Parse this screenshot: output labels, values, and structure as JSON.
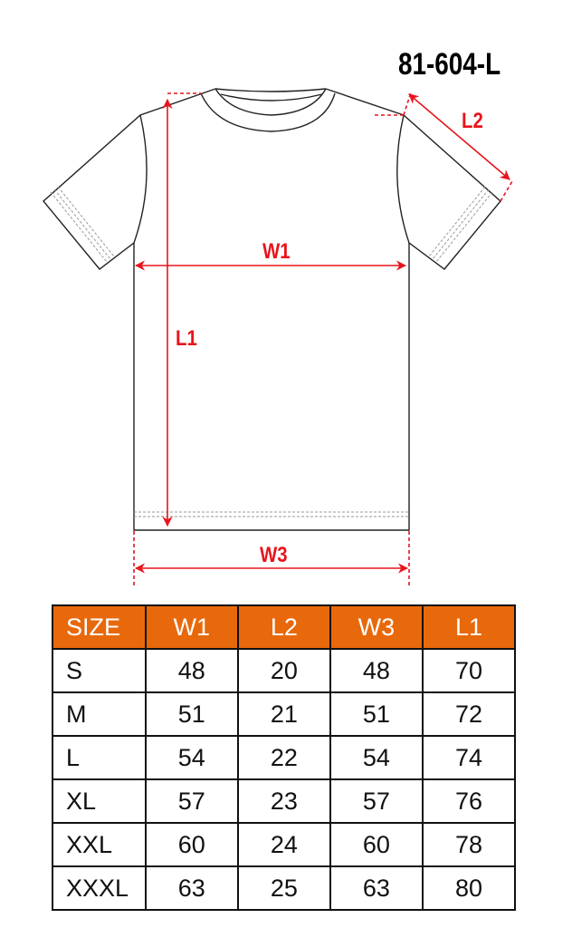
{
  "product_code": "81-604-L",
  "measure_labels": {
    "w1": "W1",
    "l1": "L1",
    "l2": "L2",
    "w3": "W3"
  },
  "colors": {
    "accent": "#e8690b",
    "measure_line": "#e8141c"
  },
  "table": {
    "headers": [
      "SIZE",
      "W1",
      "L2",
      "W3",
      "L1"
    ],
    "rows": [
      [
        "S",
        "48",
        "20",
        "48",
        "70"
      ],
      [
        "M",
        "51",
        "21",
        "51",
        "72"
      ],
      [
        "L",
        "54",
        "22",
        "54",
        "74"
      ],
      [
        "XL",
        "57",
        "23",
        "57",
        "76"
      ],
      [
        "XXL",
        "60",
        "24",
        "60",
        "78"
      ],
      [
        "XXXL",
        "63",
        "25",
        "63",
        "80"
      ]
    ]
  }
}
